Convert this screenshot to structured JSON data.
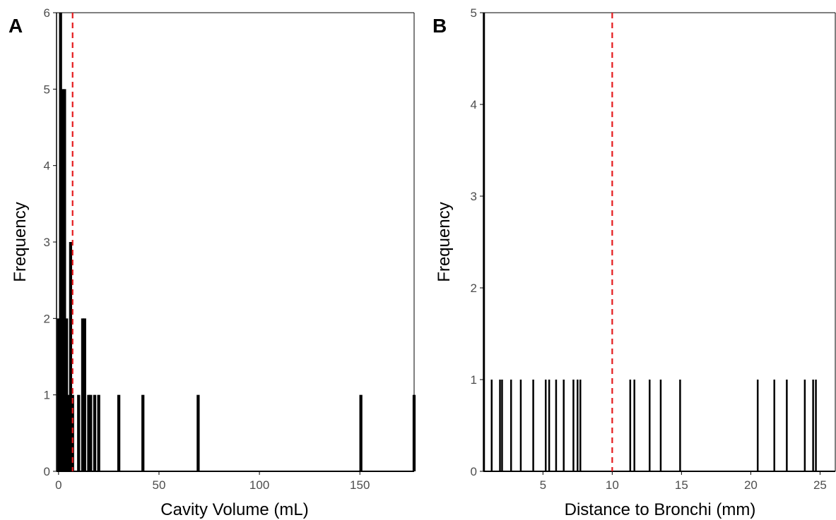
{
  "colors": {
    "bars": "#000000",
    "reference_line": "#e41a1c",
    "axis": "#000000"
  },
  "chart_data": [
    {
      "type": "bar",
      "panel_label": "A",
      "xlabel": "Cavity Volume (mL)",
      "ylabel": "Frequency",
      "xlim": [
        -1,
        177
      ],
      "ylim": [
        0,
        6
      ],
      "x_ticks": [
        0,
        50,
        100,
        150
      ],
      "y_ticks": [
        0,
        1,
        2,
        3,
        4,
        5,
        6
      ],
      "bar_width": 1.5,
      "bars": [
        {
          "x": 0,
          "y": 2
        },
        {
          "x": 1,
          "y": 6
        },
        {
          "x": 2,
          "y": 5
        },
        {
          "x": 3,
          "y": 5
        },
        {
          "x": 4,
          "y": 2
        },
        {
          "x": 5,
          "y": 1
        },
        {
          "x": 6,
          "y": 3
        },
        {
          "x": 7,
          "y": 1
        },
        {
          "x": 10,
          "y": 1
        },
        {
          "x": 12,
          "y": 2
        },
        {
          "x": 13,
          "y": 2
        },
        {
          "x": 15,
          "y": 1
        },
        {
          "x": 16,
          "y": 1
        },
        {
          "x": 18,
          "y": 1
        },
        {
          "x": 20,
          "y": 1
        },
        {
          "x": 30,
          "y": 1
        },
        {
          "x": 42,
          "y": 1
        },
        {
          "x": 69.5,
          "y": 1
        },
        {
          "x": 150.5,
          "y": 1
        },
        {
          "x": 177,
          "y": 1
        }
      ],
      "reference_line": {
        "x": 7,
        "style": "dashed"
      },
      "grid": false
    },
    {
      "type": "bar",
      "panel_label": "B",
      "xlabel": "Distance to Bronchi (mm)",
      "ylabel": "Frequency",
      "xlim": [
        0.7,
        26.1
      ],
      "ylim": [
        0,
        5
      ],
      "x_ticks": [
        5,
        10,
        15,
        20,
        25
      ],
      "y_ticks": [
        0,
        1,
        2,
        3,
        4,
        5
      ],
      "bar_width": 0.12,
      "bars": [
        {
          "x": 0.75,
          "y": 5
        },
        {
          "x": 1.3,
          "y": 1
        },
        {
          "x": 1.9,
          "y": 1
        },
        {
          "x": 2.05,
          "y": 1
        },
        {
          "x": 2.7,
          "y": 1
        },
        {
          "x": 3.4,
          "y": 1
        },
        {
          "x": 4.3,
          "y": 1
        },
        {
          "x": 5.2,
          "y": 1
        },
        {
          "x": 5.45,
          "y": 1
        },
        {
          "x": 5.95,
          "y": 1
        },
        {
          "x": 6.5,
          "y": 1
        },
        {
          "x": 7.2,
          "y": 1
        },
        {
          "x": 7.5,
          "y": 1
        },
        {
          "x": 7.7,
          "y": 1
        },
        {
          "x": 11.3,
          "y": 1
        },
        {
          "x": 11.6,
          "y": 1
        },
        {
          "x": 12.7,
          "y": 1
        },
        {
          "x": 13.5,
          "y": 1
        },
        {
          "x": 14.9,
          "y": 1
        },
        {
          "x": 20.5,
          "y": 1
        },
        {
          "x": 21.7,
          "y": 1
        },
        {
          "x": 22.6,
          "y": 1
        },
        {
          "x": 23.9,
          "y": 1
        },
        {
          "x": 24.5,
          "y": 1
        },
        {
          "x": 24.7,
          "y": 1
        }
      ],
      "reference_line": {
        "x": 10,
        "style": "dashed"
      },
      "grid": false
    }
  ]
}
